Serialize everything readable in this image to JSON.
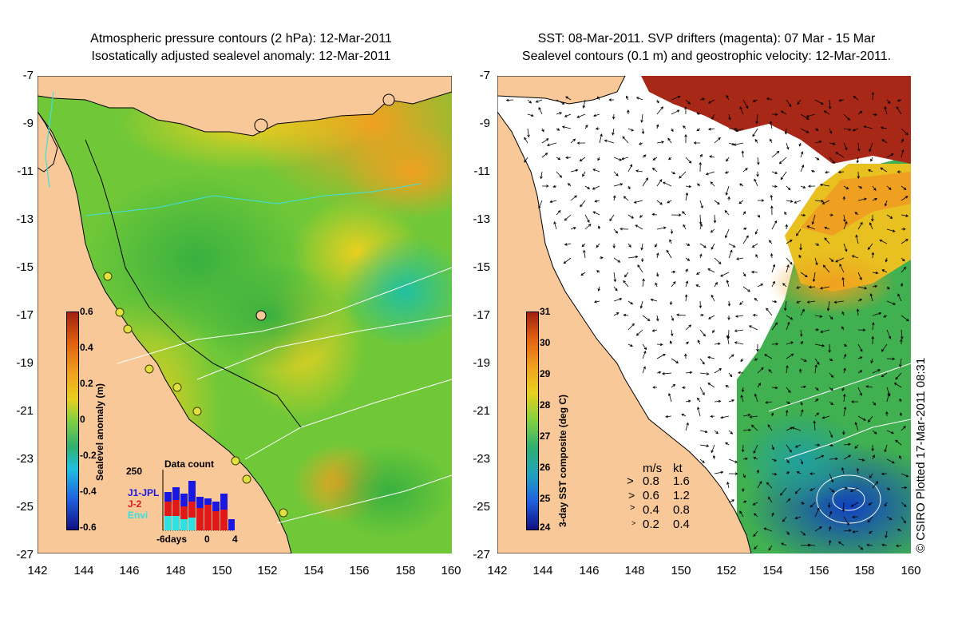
{
  "left": {
    "title_line1": "Atmospheric pressure contours (2 hPa): 12-Mar-2011",
    "title_line2": "Isostatically adjusted sealevel anomaly: 12-Mar-2011",
    "colorbar_label": "Sealevel anomaly (m)",
    "colorbar_ticks": [
      "0.6",
      "0.4",
      "0.2",
      "0",
      "-0.2",
      "-0.4",
      "-0.6"
    ],
    "inset": {
      "title": "Data count",
      "ymax": "250",
      "legend": [
        {
          "label": "J1-JPL",
          "color": "#1818e0"
        },
        {
          "label": "J-2",
          "color": "#e01818"
        },
        {
          "label": "Envi",
          "color": "#30e0e0"
        }
      ],
      "xticks": [
        "-6days",
        "0",
        "4"
      ]
    }
  },
  "right": {
    "title_line1": "SST: 08-Mar-2011. SVP drifters (magenta): 07 Mar - 15 Mar",
    "title_line2": "Sealevel contours (0.1 m) and geostrophic velocity: 12-Mar-2011.",
    "colorbar_label": "3-day SST composite (deg C)",
    "colorbar_ticks": [
      "31",
      "30",
      "29",
      "28",
      "27",
      "26",
      "25",
      "24"
    ],
    "velocity_legend": {
      "header_ms": "m/s",
      "header_kt": "kt",
      "rows": [
        {
          "ms": "0.8",
          "kt": "1.6"
        },
        {
          "ms": "0.6",
          "kt": "1.2"
        },
        {
          "ms": "0.4",
          "kt": "0.8"
        },
        {
          "ms": "0.2",
          "kt": "0.4"
        }
      ]
    }
  },
  "axes": {
    "y_ticks": [
      "-7",
      "-9",
      "-11",
      "-13",
      "-15",
      "-17",
      "-19",
      "-21",
      "-23",
      "-25",
      "-27"
    ],
    "x_ticks": [
      "142",
      "144",
      "146",
      "148",
      "150",
      "152",
      "154",
      "156",
      "158",
      "160"
    ]
  },
  "credit": "© CSIRO Plotted 17-Mar-2011 08:31",
  "colors": {
    "land": "#f8c898",
    "ocean_green": "#80d040",
    "sst_warm": "#a02010",
    "sst_cool": "#1040c0"
  }
}
